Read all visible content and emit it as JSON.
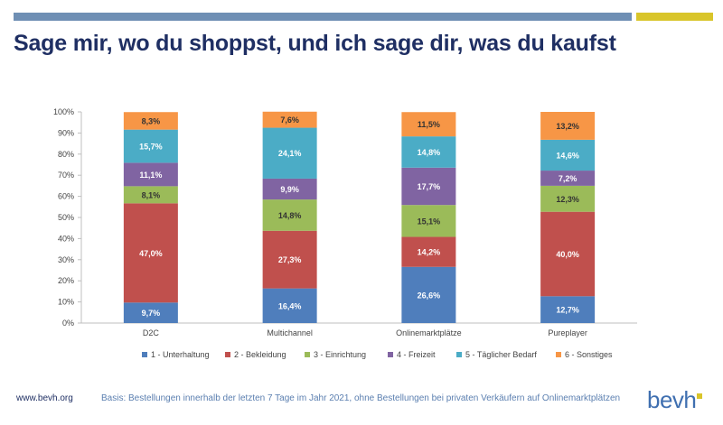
{
  "title": "Sage mir, wo du shoppst, und ich sage dir, was du kaufst",
  "footer": {
    "url": "www.bevh.org",
    "note": "Basis: Bestellungen innerhalb der letzten 7 Tage im Jahr  2021, ohne Bestellungen bei privaten Verkäufern auf Onlinemarktplätzen"
  },
  "logo": {
    "text": "bevh"
  },
  "colors": {
    "bar_blue": "#6f8fb4",
    "bar_yellow": "#d9c52a",
    "title": "#1f2f63"
  },
  "chart_data": {
    "type": "bar",
    "stacked": true,
    "categories": [
      "D2C",
      "Multichannel",
      "Onlinemarktplätze",
      "Pureplayer"
    ],
    "ylim": [
      0,
      100
    ],
    "yticks": [
      "0%",
      "10%",
      "20%",
      "30%",
      "40%",
      "50%",
      "60%",
      "70%",
      "80%",
      "90%",
      "100%"
    ],
    "grid": false,
    "legend_position": "bottom",
    "series": [
      {
        "name": "1 - Unterhaltung",
        "color": "#4f7ebc",
        "values": [
          9.7,
          16.4,
          26.6,
          12.7
        ],
        "labels": [
          "9,7%",
          "16,4%",
          "26,6%",
          "12,7%"
        ]
      },
      {
        "name": "2 - Bekleidung",
        "color": "#c0504d",
        "values": [
          47.0,
          27.3,
          14.2,
          40.0
        ],
        "labels": [
          "47,0%",
          "27,3%",
          "14,2%",
          "40,0%"
        ]
      },
      {
        "name": "3 - Einrichtung",
        "color": "#9bbb59",
        "values": [
          8.1,
          14.8,
          15.1,
          12.3
        ],
        "labels": [
          "8,1%",
          "14,8%",
          "15,1%",
          "12,3%"
        ]
      },
      {
        "name": "4 - Freizeit",
        "color": "#8064a2",
        "values": [
          11.1,
          9.9,
          17.7,
          7.2
        ],
        "labels": [
          "11,1%",
          "9,9%",
          "17,7%",
          "7,2%"
        ]
      },
      {
        "name": "5 - Täglicher Bedarf",
        "color": "#4bacc6",
        "values": [
          15.7,
          24.1,
          14.8,
          14.6
        ],
        "labels": [
          "15,7%",
          "24,1%",
          "14,8%",
          "14,6%"
        ]
      },
      {
        "name": "6 - Sonstiges",
        "color": "#f79646",
        "values": [
          8.3,
          7.6,
          11.5,
          13.2
        ],
        "labels": [
          "8,3%",
          "7,6%",
          "11,5%",
          "13,2%"
        ]
      }
    ]
  }
}
